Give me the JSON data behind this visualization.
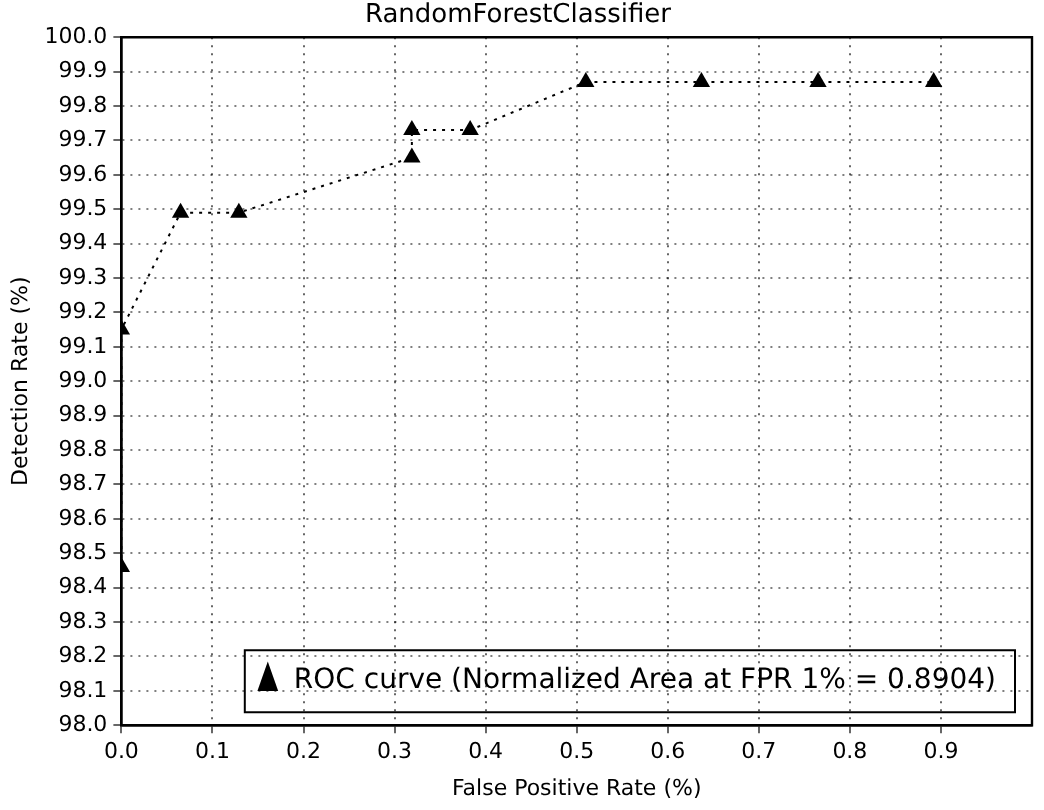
{
  "chart_data": {
    "type": "line",
    "title": "RandomForestClassifier",
    "xlabel": "False Positive Rate (%)",
    "ylabel": "Detection Rate (%)",
    "x": [
      0,
      0,
      0.065,
      0.129,
      0.319,
      0.319,
      0.383,
      0.51,
      0.637,
      0.765,
      0.892
    ],
    "series": [
      {
        "name": "ROC curve (Normalized Area at FPR 1% = 0.8904)",
        "color": "#000000",
        "values": [
          98.46,
          99.15,
          99.49,
          99.49,
          99.65,
          99.73,
          99.73,
          99.87,
          99.87,
          99.87,
          99.87
        ]
      }
    ],
    "xlim": [
      0,
      1
    ],
    "xticks": [
      {
        "value": 0,
        "label": "0.0"
      },
      0.1,
      0.2,
      0.3,
      0.4,
      0.5,
      0.6,
      0.7,
      0.8,
      0.9
    ],
    "ylim": [
      98,
      100
    ],
    "yticks": [
      {
        "value": 98,
        "label": "98.0"
      },
      98.1,
      98.2,
      98.3,
      98.4,
      98.5,
      98.6,
      98.7,
      98.8,
      98.9,
      {
        "value": 99,
        "label": "99.0"
      },
      99.1,
      99.2,
      99.3,
      99.4,
      99.5,
      99.6,
      99.7,
      99.8,
      99.9,
      {
        "value": 100,
        "label": "100.0"
      }
    ],
    "grid": true,
    "legend": "bottom right",
    "marker": "triangle",
    "line_style": "dotted"
  }
}
